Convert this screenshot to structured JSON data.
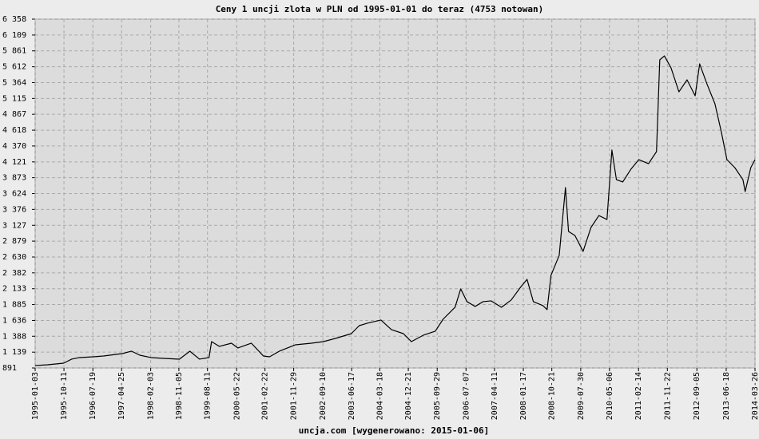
{
  "chart_data": {
    "type": "line",
    "title": "Ceny 1 uncji zlota w PLN od 1995-01-01 do teraz (4753 notowan)",
    "footer": "uncja.com [wygenerowano: 2015-01-06]",
    "color": "#000000",
    "grid": true,
    "xlim": [
      "1995-01-03",
      "2014-03-26"
    ],
    "xticks": [
      "1995-01-03",
      "1995-10-11",
      "1996-07-19",
      "1997-04-25",
      "1998-02-03",
      "1998-11-05",
      "1999-08-11",
      "2000-05-22",
      "2001-02-22",
      "2001-11-29",
      "2002-09-10",
      "2003-06-17",
      "2004-03-18",
      "2004-12-21",
      "2005-09-29",
      "2006-07-07",
      "2007-04-11",
      "2008-01-17",
      "2008-10-21",
      "2009-07-30",
      "2010-05-06",
      "2011-02-14",
      "2011-11-22",
      "2012-09-05",
      "2013-06-18",
      "2014-03-26"
    ],
    "ylim": [
      891,
      6358
    ],
    "yticks": [
      891,
      {
        "value": 1139,
        "label": "1 139"
      },
      {
        "value": 1388,
        "label": "1 388"
      },
      {
        "value": 1636,
        "label": "1 636"
      },
      {
        "value": 1885,
        "label": "1 885"
      },
      {
        "value": 2133,
        "label": "2 133"
      },
      {
        "value": 2382,
        "label": "2 382"
      },
      {
        "value": 2630,
        "label": "2 630"
      },
      {
        "value": 2879,
        "label": "2 879"
      },
      {
        "value": 3127,
        "label": "3 127"
      },
      {
        "value": 3376,
        "label": "3 376"
      },
      {
        "value": 3624,
        "label": "3 624"
      },
      {
        "value": 3873,
        "label": "3 873"
      },
      {
        "value": 4121,
        "label": "4 121"
      },
      {
        "value": 4370,
        "label": "4 370"
      },
      {
        "value": 4618,
        "label": "4 618"
      },
      {
        "value": 4867,
        "label": "4 867"
      },
      {
        "value": 5115,
        "label": "5 115"
      },
      {
        "value": 5364,
        "label": "5 364"
      },
      {
        "value": 5612,
        "label": "5 612"
      },
      {
        "value": 5861,
        "label": "5 861"
      },
      {
        "value": 6109,
        "label": "6 109"
      },
      {
        "value": 6358,
        "label": "6 358"
      }
    ],
    "x": [
      "1995-01-03",
      "1995-05-05",
      "1995-10-08",
      "1995-12-25",
      "1996-03-10",
      "1996-07-22",
      "1996-11-01",
      "1997-05-01",
      "1997-08-01",
      "1997-10-20",
      "1998-02-05",
      "1998-06-10",
      "1998-11-10",
      "1999-02-20",
      "1999-05-25",
      "1999-08-26",
      "1999-09-20",
      "1999-12-05",
      "2000-04-01",
      "2000-06-03",
      "2000-10-12",
      "2001-02-06",
      "2001-04-08",
      "2001-07-12",
      "2001-12-17",
      "2002-05-20",
      "2002-09-14",
      "2003-01-10",
      "2003-06-14",
      "2003-08-30",
      "2003-11-17",
      "2004-03-29",
      "2004-07-09",
      "2004-11-03",
      "2005-01-20",
      "2005-05-16",
      "2005-09-10",
      "2005-11-25",
      "2006-03-22",
      "2006-05-16",
      "2006-07-17",
      "2006-10-04",
      "2006-12-20",
      "2007-03-08",
      "2007-06-18",
      "2007-09-20",
      "2007-12-20",
      "2008-02-22",
      "2008-04-24",
      "2008-07-27",
      "2008-09-05",
      "2008-10-13",
      "2009-01-01",
      "2009-03-03",
      "2009-04-02",
      "2009-06-03",
      "2009-08-22",
      "2009-11-07",
      "2010-01-23",
      "2010-04-12",
      "2010-05-30",
      "2010-07-13",
      "2010-09-13",
      "2010-12-01",
      "2011-02-17",
      "2011-05-22",
      "2011-08-08",
      "2011-09-09",
      "2011-10-24",
      "2011-12-28",
      "2012-03-14",
      "2012-06-01",
      "2012-08-19",
      "2012-10-02",
      "2012-12-12",
      "2013-02-28",
      "2013-05-01",
      "2013-06-25",
      "2013-09-10",
      "2013-11-28",
      "2013-12-20",
      "2014-02-13",
      "2014-03-26"
    ],
    "values": [
      929,
      941,
      966,
      1029,
      1054,
      1066,
      1079,
      1116,
      1154,
      1091,
      1054,
      1041,
      1029,
      1154,
      1029,
      1054,
      1304,
      1229,
      1279,
      1204,
      1279,
      1079,
      1066,
      1154,
      1254,
      1279,
      1304,
      1354,
      1429,
      1554,
      1592,
      1642,
      1492,
      1429,
      1304,
      1404,
      1467,
      1654,
      1842,
      2130,
      1930,
      1855,
      1930,
      1943,
      1842,
      1955,
      2155,
      2280,
      1930,
      1868,
      1805,
      2343,
      2656,
      3718,
      3030,
      2968,
      2718,
      3093,
      3280,
      3218,
      4306,
      3843,
      3806,
      4006,
      4156,
      4093,
      4281,
      5720,
      5782,
      5594,
      5219,
      5407,
      5157,
      5657,
      5344,
      5032,
      4594,
      4156,
      4031,
      3843,
      3656,
      4031,
      4156
    ]
  }
}
